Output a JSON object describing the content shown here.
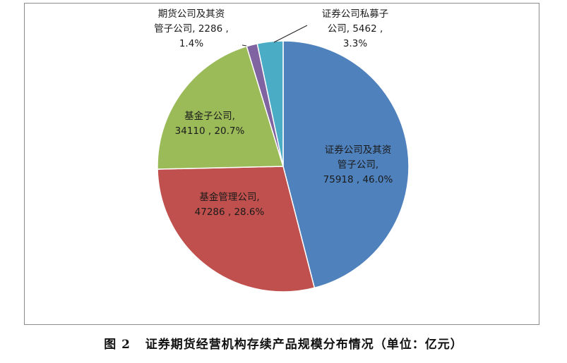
{
  "chart_data": {
    "type": "pie",
    "title": "",
    "slices": [
      {
        "label_lines": [
          "证券公司及其资",
          "管子公司,",
          "75918 , 46.0%"
        ],
        "name": "证券公司及其资管子公司",
        "value": 75918,
        "percent": 46.0,
        "color": "#4f81bd"
      },
      {
        "label_lines": [
          "基金管理公司,",
          "47286 , 28.6%"
        ],
        "name": "基金管理公司",
        "value": 47286,
        "percent": 28.6,
        "color": "#c0504d"
      },
      {
        "label_lines": [
          "基金子公司,",
          "34110 , 20.7%"
        ],
        "name": "基金子公司",
        "value": 34110,
        "percent": 20.7,
        "color": "#9bbb59"
      },
      {
        "label_lines": [
          "期货公司及其资",
          "管子公司, 2286 ,",
          "1.4%"
        ],
        "name": "期货公司及其资管子公司",
        "value": 2286,
        "percent": 1.4,
        "color": "#8064a2"
      },
      {
        "label_lines": [
          "证券公司私募子",
          "公司, 5462 ,",
          "3.3%"
        ],
        "name": "证券公司私募子公司",
        "value": 5462,
        "percent": 3.3,
        "color": "#4bacc6"
      }
    ]
  },
  "caption": "图 2   证券期货经营机构存续产品规模分布情况（单位：亿元）"
}
